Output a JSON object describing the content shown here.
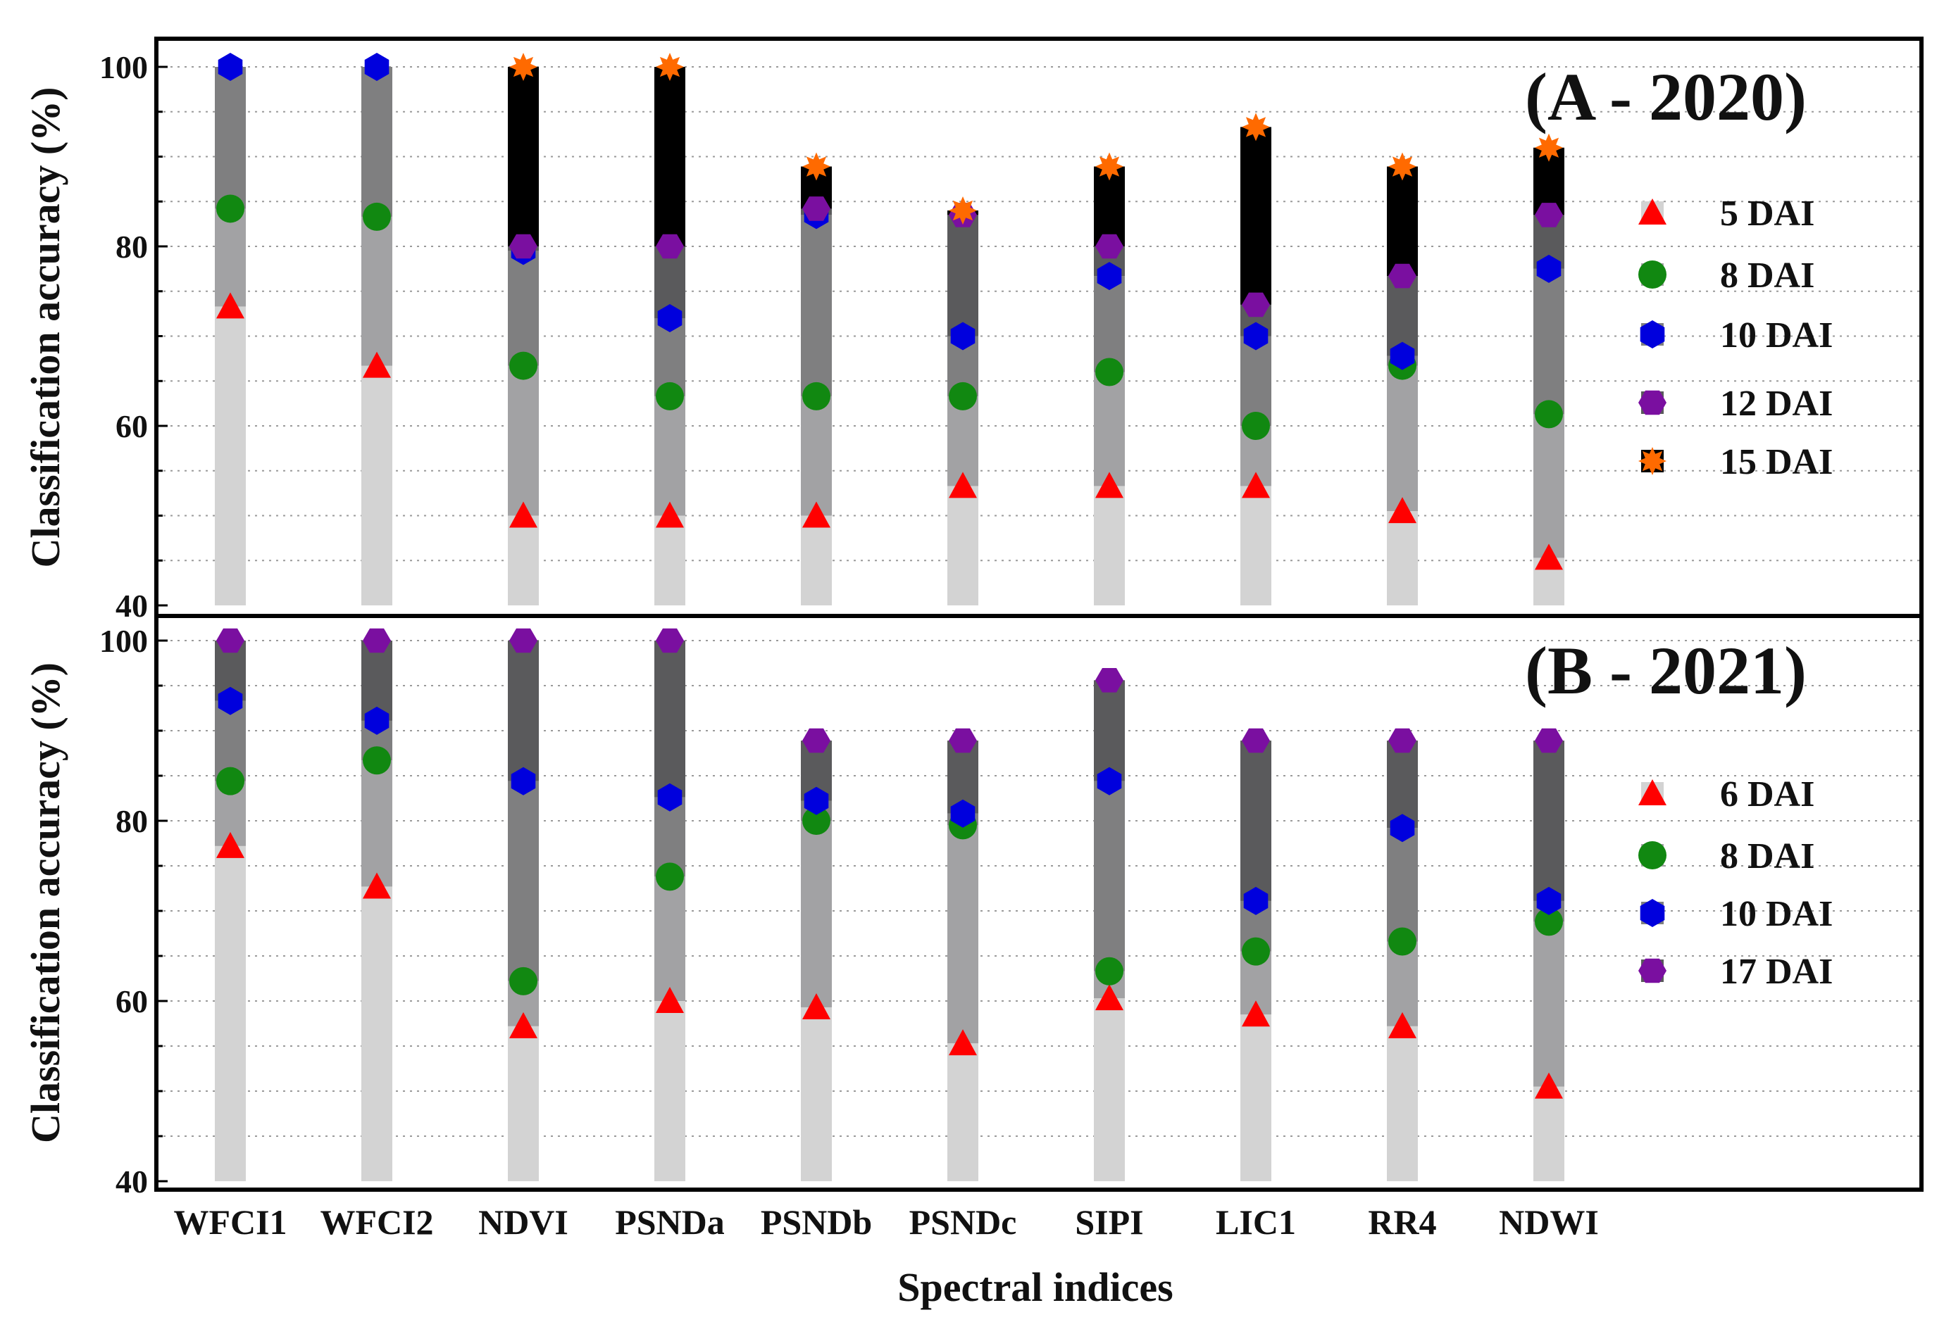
{
  "chart_data": [
    {
      "type": "bar",
      "title": "(A - 2020)",
      "ylabel": "Classification accuracy (%)",
      "xlabel": "",
      "ylim": [
        40,
        100
      ],
      "yticks": [
        40,
        60,
        80,
        100
      ],
      "categories": [
        "WFCI1",
        "WFCI2",
        "NDVI",
        "PSNDa",
        "PSNDb",
        "PSNDc",
        "SIPI",
        "LIC1",
        "RR4",
        "NDWI"
      ],
      "series": [
        {
          "name": "5 DAI",
          "marker": "triangle",
          "color": "#ff0000",
          "values": [
            73.3,
            66.7,
            50,
            50,
            50,
            53.3,
            53.3,
            53.3,
            50.5,
            45.3
          ]
        },
        {
          "name": "8 DAI",
          "marker": "circle",
          "color": "#118811",
          "values": [
            84.2,
            83.3,
            66.7,
            63.3,
            63.3,
            63.3,
            66,
            60,
            66.7,
            61.3
          ]
        },
        {
          "name": "10 DAI",
          "marker": "hexagon",
          "color": "#0000dd",
          "values": [
            100,
            100,
            79.5,
            72,
            83.5,
            70,
            76.7,
            70,
            67.8,
            77.5
          ]
        },
        {
          "name": "12 DAI",
          "marker": "diamond",
          "color": "#7a0fa0",
          "values": [
            null,
            null,
            80,
            80,
            84.2,
            83.5,
            80,
            73.5,
            76.7,
            83.5
          ]
        },
        {
          "name": "15 DAI",
          "marker": "star",
          "color": "#ff6a00",
          "values": [
            null,
            null,
            100,
            100,
            88.9,
            84,
            88.9,
            93.3,
            88.9,
            91
          ]
        }
      ],
      "legend": [
        "5 DAI",
        "8 DAI",
        "10 DAI",
        "12 DAI",
        "15 DAI"
      ]
    },
    {
      "type": "bar",
      "title": "(B - 2021)",
      "ylabel": "Classification accuracy (%)",
      "xlabel": "Spectral indices",
      "ylim": [
        40,
        100
      ],
      "yticks": [
        40,
        60,
        80,
        100
      ],
      "categories": [
        "WFCI1",
        "WFCI2",
        "NDVI",
        "PSNDa",
        "PSNDb",
        "PSNDc",
        "SIPI",
        "LIC1",
        "RR4",
        "NDWI"
      ],
      "series": [
        {
          "name": "6 DAI",
          "marker": "triangle",
          "color": "#ff0000",
          "values": [
            77.2,
            72.7,
            57.2,
            60,
            59.3,
            55.3,
            60.3,
            58.5,
            57.2,
            50.5
          ]
        },
        {
          "name": "8 DAI",
          "marker": "circle",
          "color": "#118811",
          "values": [
            84.4,
            86.7,
            62.2,
            73.8,
            80,
            79.5,
            63.3,
            65.5,
            66.6,
            68.8
          ]
        },
        {
          "name": "10 DAI",
          "marker": "hexagon",
          "color": "#0000dd",
          "values": [
            93.3,
            91.1,
            84.4,
            82.6,
            82.2,
            80.8,
            84.4,
            71.1,
            79.2,
            71.1
          ]
        },
        {
          "name": "17 DAI",
          "marker": "diamond",
          "color": "#7a0fa0",
          "values": [
            100,
            100,
            100,
            100,
            88.9,
            88.9,
            95.6,
            88.9,
            88.9,
            88.9
          ]
        }
      ],
      "legend": [
        "6 DAI",
        "8 DAI",
        "10 DAI",
        "17 DAI"
      ]
    }
  ]
}
